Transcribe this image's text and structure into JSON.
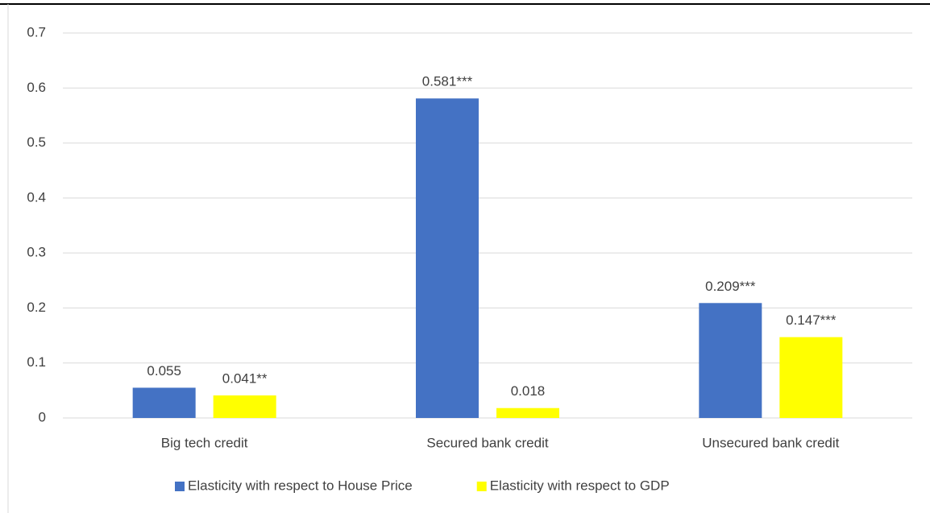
{
  "chart_data": {
    "type": "bar",
    "categories": [
      "Big tech credit",
      "Secured bank credit",
      "Unsecured bank credit"
    ],
    "series": [
      {
        "name": "Elasticity with respect to House Price",
        "color": "#4472c4",
        "values": [
          0.055,
          0.581,
          0.209
        ],
        "value_labels": [
          "0.055",
          "0.581***",
          "0.209***"
        ]
      },
      {
        "name": "Elasticity with respect to GDP",
        "color": "#ffff00",
        "values": [
          0.041,
          0.018,
          0.147
        ],
        "value_labels": [
          "0.041**",
          "0.018",
          "0.147***"
        ]
      }
    ],
    "ylim": [
      0,
      0.7
    ],
    "yticks": [
      0,
      0.1,
      0.2,
      0.3,
      0.4,
      0.5,
      0.6,
      0.7
    ],
    "grid": true,
    "legend": "bottom"
  }
}
